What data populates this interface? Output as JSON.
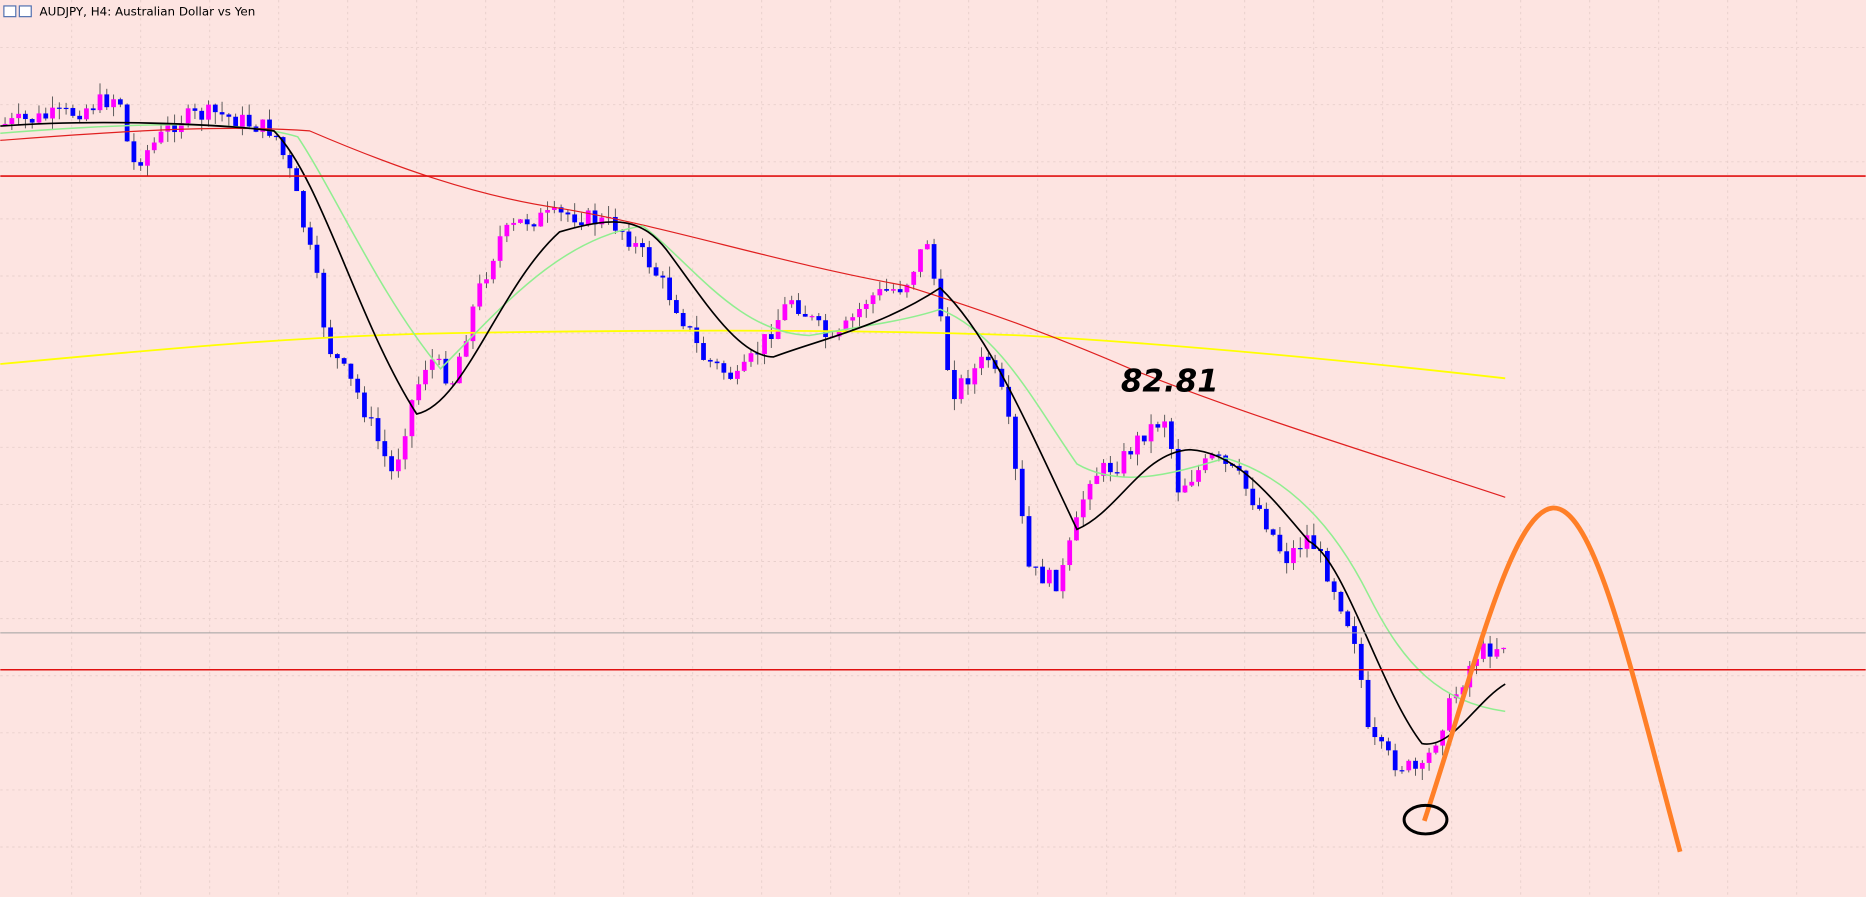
{
  "header": {
    "title": "AUDJPY, H4:  Australian Dollar vs Yen"
  },
  "annotations": [
    {
      "label": "82.81"
    }
  ]
}
